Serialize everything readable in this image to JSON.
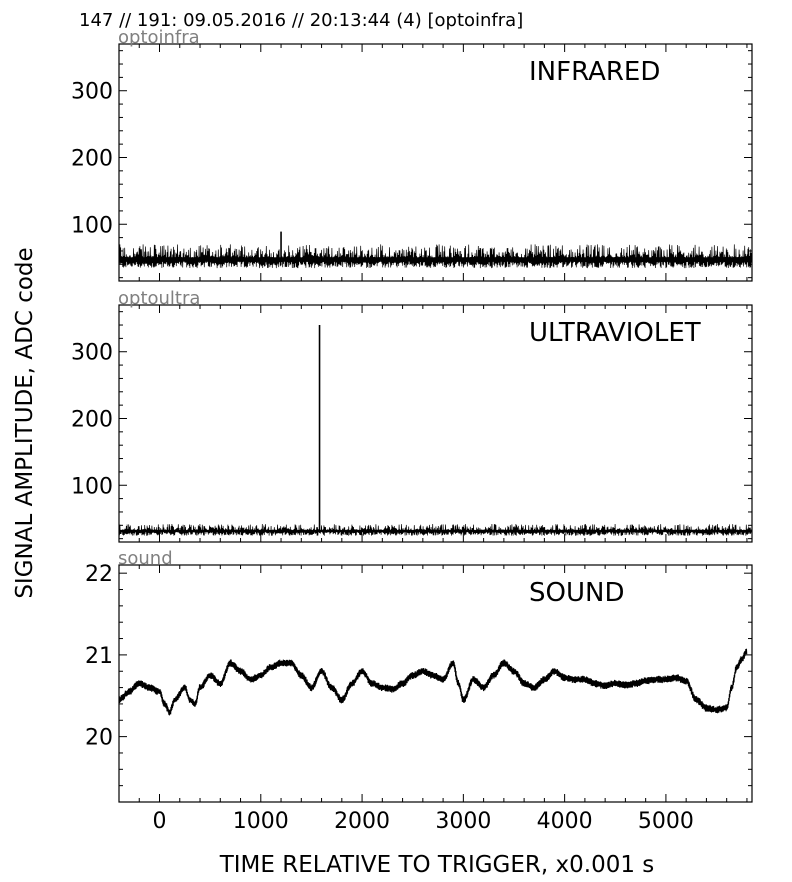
{
  "header": "147 // 191:   09.05.2016 // 20:13:44 (4)  [optoinfra]",
  "ylabel": "SIGNAL AMPLITUDE,  ADC code",
  "xlabel": "TIME RELATIVE TO TRIGGER,   x0.001 s",
  "colors": {
    "trace": "#000000",
    "tag": "#808080",
    "frame": "#000000"
  },
  "chart_data": [
    {
      "type": "line",
      "tag": "optoinfra",
      "title": "INFRARED",
      "xlim": [
        -400,
        5850
      ],
      "ylim": [
        15,
        370
      ],
      "yticks": [
        100,
        200,
        300
      ],
      "xticks": [
        0,
        1000,
        2000,
        3000,
        4000,
        5000
      ],
      "grid": false,
      "signal": {
        "baseline": 44,
        "band_low": 30,
        "band_high": 70,
        "max_spike": [
          1200,
          89
        ],
        "note_trend": [
          [
            -400,
            46
          ],
          [
            5800,
            42
          ]
        ]
      }
    },
    {
      "type": "line",
      "tag": "optoultra",
      "title": "ULTRAVIOLET",
      "xlim": [
        -400,
        5850
      ],
      "ylim": [
        15,
        370
      ],
      "yticks": [
        100,
        200,
        300
      ],
      "xticks": [
        0,
        1000,
        2000,
        3000,
        4000,
        5000
      ],
      "grid": false,
      "signal": {
        "baseline": 30,
        "band_low": 22,
        "band_high": 42,
        "max_spike": [
          1580,
          340
        ]
      }
    },
    {
      "type": "line",
      "tag": "sound",
      "title": "SOUND",
      "xlim": [
        -400,
        5850
      ],
      "ylim": [
        19.2,
        22.1
      ],
      "yticks": [
        20,
        21,
        22
      ],
      "xticks": [
        0,
        1000,
        2000,
        3000,
        4000,
        5000
      ],
      "grid": false,
      "points": [
        [
          -400,
          20.45
        ],
        [
          -300,
          20.55
        ],
        [
          -200,
          20.65
        ],
        [
          -100,
          20.6
        ],
        [
          0,
          20.55
        ],
        [
          50,
          20.4
        ],
        [
          100,
          20.3
        ],
        [
          150,
          20.45
        ],
        [
          250,
          20.6
        ],
        [
          300,
          20.45
        ],
        [
          350,
          20.4
        ],
        [
          400,
          20.6
        ],
        [
          500,
          20.75
        ],
        [
          600,
          20.65
        ],
        [
          700,
          20.9
        ],
        [
          800,
          20.8
        ],
        [
          900,
          20.7
        ],
        [
          1000,
          20.75
        ],
        [
          1100,
          20.85
        ],
        [
          1200,
          20.9
        ],
        [
          1300,
          20.9
        ],
        [
          1400,
          20.75
        ],
        [
          1500,
          20.6
        ],
        [
          1600,
          20.8
        ],
        [
          1700,
          20.6
        ],
        [
          1800,
          20.45
        ],
        [
          1900,
          20.65
        ],
        [
          2000,
          20.8
        ],
        [
          2100,
          20.65
        ],
        [
          2200,
          20.6
        ],
        [
          2300,
          20.58
        ],
        [
          2400,
          20.65
        ],
        [
          2500,
          20.75
        ],
        [
          2600,
          20.8
        ],
        [
          2700,
          20.75
        ],
        [
          2800,
          20.7
        ],
        [
          2900,
          20.9
        ],
        [
          2950,
          20.65
        ],
        [
          3000,
          20.45
        ],
        [
          3100,
          20.7
        ],
        [
          3200,
          20.6
        ],
        [
          3300,
          20.75
        ],
        [
          3400,
          20.9
        ],
        [
          3500,
          20.8
        ],
        [
          3600,
          20.65
        ],
        [
          3700,
          20.6
        ],
        [
          3800,
          20.7
        ],
        [
          3900,
          20.8
        ],
        [
          4000,
          20.72
        ],
        [
          4100,
          20.7
        ],
        [
          4200,
          20.7
        ],
        [
          4300,
          20.65
        ],
        [
          4400,
          20.62
        ],
        [
          4500,
          20.65
        ],
        [
          4600,
          20.63
        ],
        [
          4700,
          20.65
        ],
        [
          4800,
          20.68
        ],
        [
          4900,
          20.7
        ],
        [
          5000,
          20.7
        ],
        [
          5100,
          20.72
        ],
        [
          5200,
          20.68
        ],
        [
          5300,
          20.45
        ],
        [
          5400,
          20.35
        ],
        [
          5500,
          20.33
        ],
        [
          5600,
          20.35
        ],
        [
          5650,
          20.6
        ],
        [
          5700,
          20.85
        ],
        [
          5750,
          20.95
        ],
        [
          5800,
          21.05
        ]
      ]
    }
  ]
}
